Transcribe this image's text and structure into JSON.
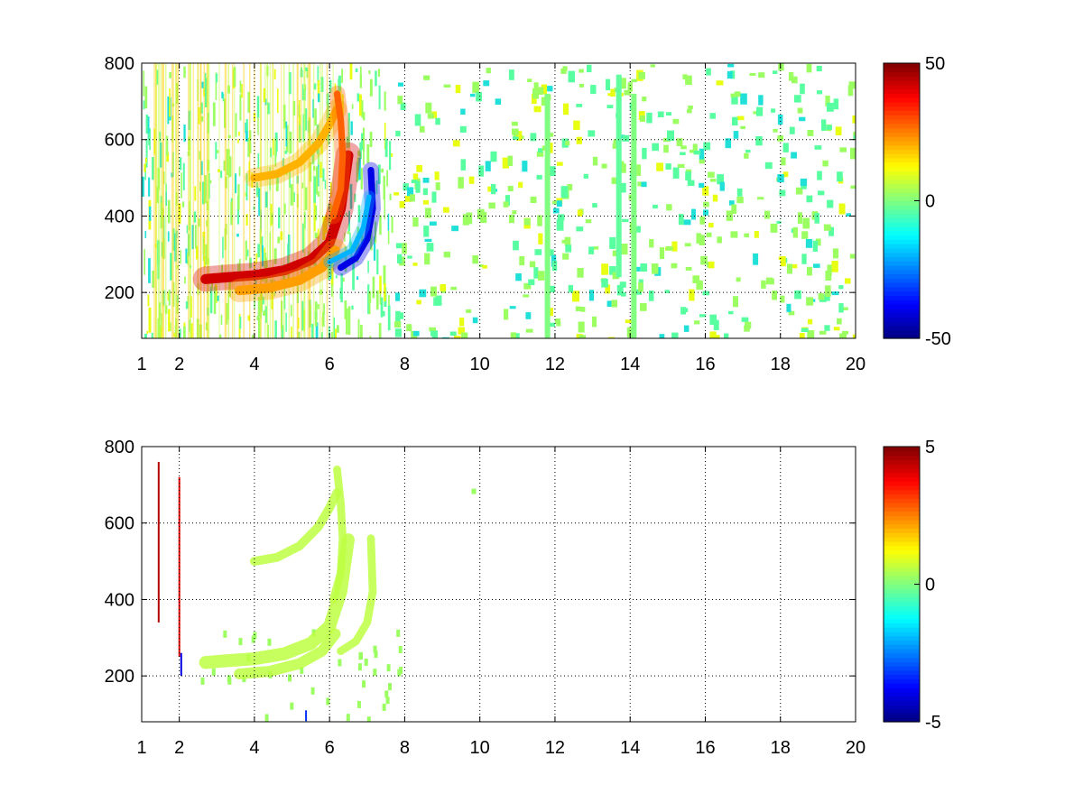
{
  "chart_data": [
    {
      "type": "heatmap",
      "title": "",
      "xlabel": "",
      "ylabel": "",
      "xlim": [
        1,
        20
      ],
      "ylim": [
        80,
        800
      ],
      "xticks": [
        1,
        2,
        4,
        6,
        8,
        10,
        12,
        14,
        16,
        18,
        20
      ],
      "yticks": [
        200,
        400,
        600,
        800
      ],
      "grid": true,
      "colormap": "jet",
      "clim": [
        -50,
        50
      ],
      "colorbar_ticks": [
        -50,
        0,
        50
      ],
      "features": [
        {
          "kind": "arc",
          "points": [
            [
              2.7,
              235
            ],
            [
              3.3,
              240
            ],
            [
              4.0,
              245
            ],
            [
              4.8,
              258
            ],
            [
              5.5,
              285
            ],
            [
              6.0,
              330
            ],
            [
              6.3,
              420
            ],
            [
              6.5,
              560
            ]
          ],
          "value": 42,
          "width": 28
        },
        {
          "kind": "arc",
          "points": [
            [
              3.6,
              205
            ],
            [
              4.4,
              212
            ],
            [
              5.2,
              232
            ],
            [
              5.8,
              265
            ],
            [
              6.15,
              310
            ]
          ],
          "value": 22,
          "width": 26
        },
        {
          "kind": "arc",
          "points": [
            [
              4.0,
              500
            ],
            [
              4.6,
              510
            ],
            [
              5.2,
              540
            ],
            [
              5.7,
              590
            ],
            [
              6.0,
              640
            ],
            [
              6.2,
              680
            ]
          ],
          "value": 20,
          "width": 22
        },
        {
          "kind": "arc",
          "points": [
            [
              6.2,
              720
            ],
            [
              6.3,
              650
            ],
            [
              6.35,
              560
            ],
            [
              6.3,
              470
            ],
            [
              6.1,
              400
            ]
          ],
          "value": 28,
          "width": 18
        },
        {
          "kind": "arc",
          "points": [
            [
              6.3,
              265
            ],
            [
              6.7,
              290
            ],
            [
              7.0,
              340
            ],
            [
              7.15,
              420
            ],
            [
              7.1,
              520
            ]
          ],
          "value": -40,
          "width": 18
        },
        {
          "kind": "arc",
          "points": [
            [
              6.0,
              280
            ],
            [
              6.6,
              310
            ],
            [
              6.9,
              370
            ],
            [
              7.05,
              450
            ]
          ],
          "value": -20,
          "width": 14
        },
        {
          "kind": "stripe",
          "x": 11.8,
          "y0": 80,
          "y1": 720,
          "value": 0
        },
        {
          "kind": "stripe",
          "x": 13.7,
          "y0": 240,
          "y1": 770,
          "value": -3
        },
        {
          "kind": "stripe",
          "x": 14.1,
          "y0": 80,
          "y1": 720,
          "value": 0
        }
      ]
    },
    {
      "type": "heatmap",
      "title": "",
      "xlabel": "",
      "ylabel": "",
      "xlim": [
        1,
        20
      ],
      "ylim": [
        80,
        800
      ],
      "xticks": [
        1,
        2,
        4,
        6,
        8,
        10,
        12,
        14,
        16,
        18,
        20
      ],
      "yticks": [
        200,
        400,
        600,
        800
      ],
      "grid": true,
      "colormap": "jet",
      "clim": [
        -5,
        5
      ],
      "colorbar_ticks": [
        -5,
        0,
        5
      ],
      "features": [
        {
          "kind": "arc",
          "points": [
            [
              2.7,
              235
            ],
            [
              3.3,
              240
            ],
            [
              4.0,
              245
            ],
            [
              4.8,
              258
            ],
            [
              5.5,
              285
            ],
            [
              6.0,
              330
            ],
            [
              6.3,
              420
            ],
            [
              6.5,
              560
            ]
          ],
          "value": 0.6,
          "width": 26
        },
        {
          "kind": "arc",
          "points": [
            [
              3.6,
              205
            ],
            [
              4.4,
              212
            ],
            [
              5.2,
              232
            ],
            [
              5.8,
              265
            ],
            [
              6.15,
              310
            ]
          ],
          "value": 0.6,
          "width": 22
        },
        {
          "kind": "arc",
          "points": [
            [
              4.0,
              500
            ],
            [
              4.6,
              510
            ],
            [
              5.2,
              540
            ],
            [
              5.7,
              590
            ],
            [
              6.0,
              640
            ],
            [
              6.2,
              680
            ]
          ],
          "value": 0.6,
          "width": 18
        },
        {
          "kind": "arc",
          "points": [
            [
              6.2,
              740
            ],
            [
              6.3,
              650
            ],
            [
              6.35,
              560
            ],
            [
              6.3,
              470
            ],
            [
              6.1,
              400
            ]
          ],
          "value": 0.6,
          "width": 16
        },
        {
          "kind": "arc",
          "points": [
            [
              6.3,
              265
            ],
            [
              6.7,
              290
            ],
            [
              7.0,
              340
            ],
            [
              7.15,
              420
            ],
            [
              7.1,
              560
            ]
          ],
          "value": 0.6,
          "width": 16
        },
        {
          "kind": "stripe",
          "x": 1.5,
          "y0": 340,
          "y1": 760,
          "value": 4.5
        },
        {
          "kind": "stripe",
          "x": 2.05,
          "y0": 250,
          "y1": 720,
          "value": 4.0
        },
        {
          "kind": "stripe",
          "x": 2.1,
          "y0": 200,
          "y1": 260,
          "value": -4.0
        }
      ]
    }
  ]
}
